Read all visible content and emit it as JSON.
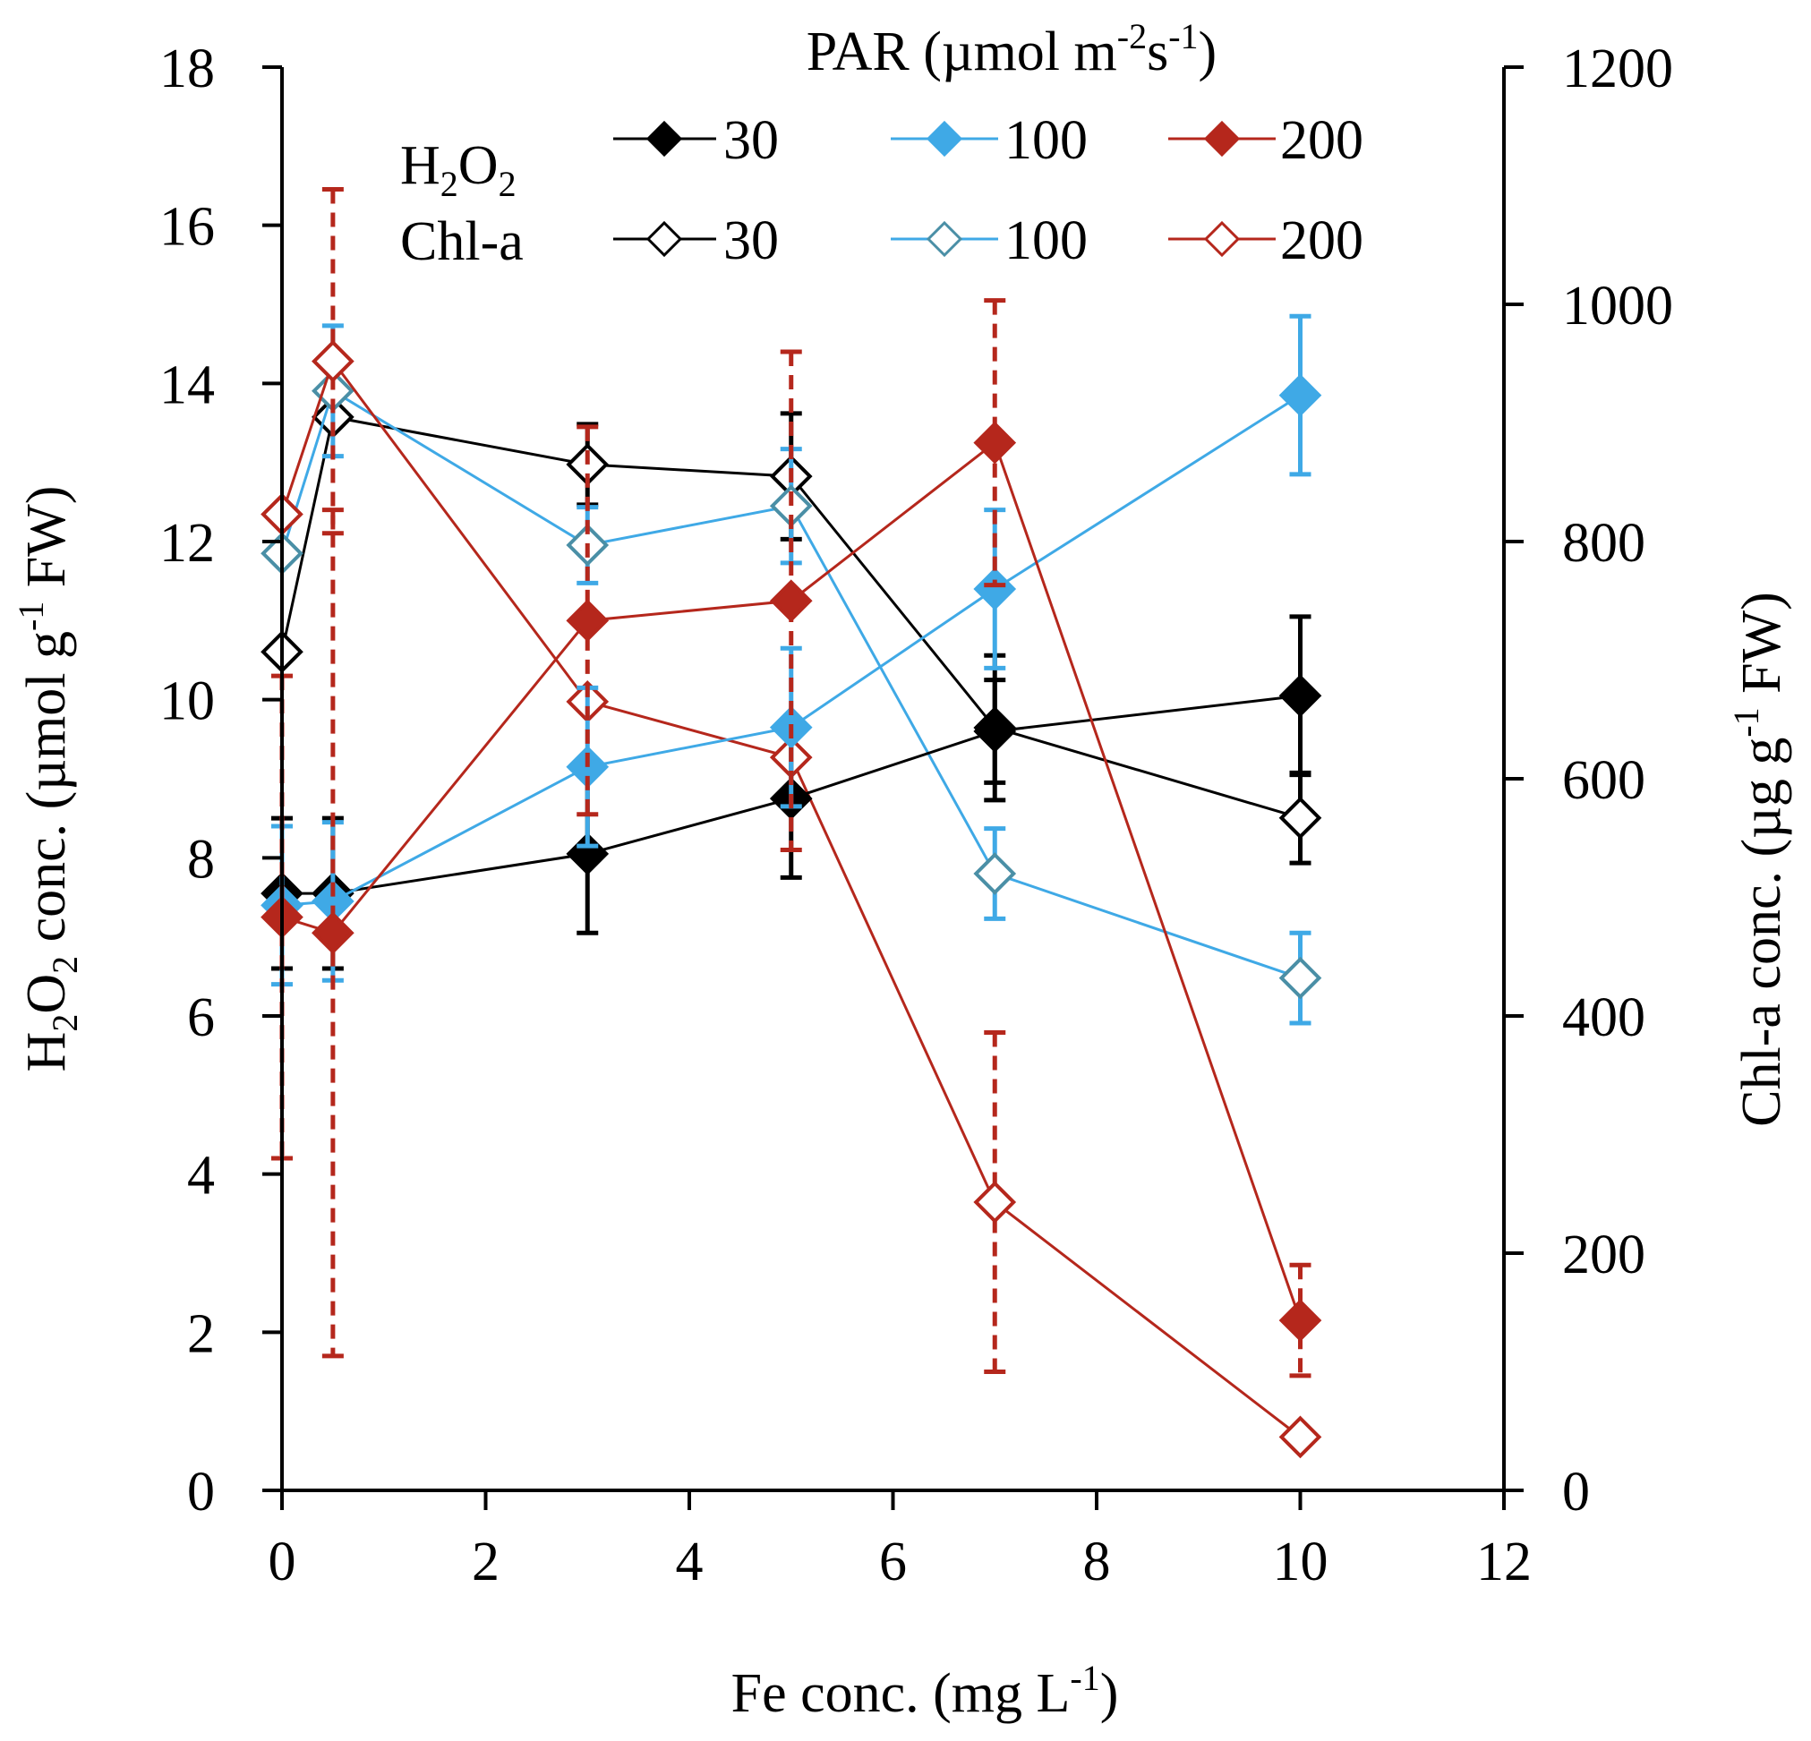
{
  "chart_data": {
    "type": "line",
    "x": [
      0,
      0.5,
      3,
      5,
      7,
      10
    ],
    "xlabel": {
      "main": "Fe conc. (mg L",
      "sup": "-1",
      "end": ")"
    },
    "ylabel_left": {
      "p1": "H",
      "sub1": "2",
      "p2": "O",
      "sub2": "2",
      "p3": " conc. (µmol g",
      "sup": "-1",
      "p4": " FW)"
    },
    "ylabel_right": {
      "p1": "Chl-a conc. (µg g",
      "sup": "-1",
      "p2": " FW)"
    },
    "xlim": [
      0,
      12
    ],
    "ylim_left": [
      0,
      18
    ],
    "ylim_right": [
      0,
      1200
    ],
    "xticks": [
      "0",
      "2",
      "4",
      "6",
      "8",
      "10",
      "12"
    ],
    "yticks_left": [
      "0",
      "2",
      "4",
      "6",
      "8",
      "10",
      "12",
      "14",
      "16",
      "18"
    ],
    "yticks_right": [
      "0",
      "200",
      "400",
      "600",
      "800",
      "1000",
      "1200"
    ],
    "grid": false,
    "legend": {
      "title": {
        "p1": "PAR (µmol m",
        "sup1": "-2",
        "p2": "s",
        "sup2": "-1",
        "p3": ")"
      },
      "row_h2o2": {
        "p1": "H",
        "sub1": "2",
        "p2": "O",
        "sub2": "2"
      },
      "row_chla": "Chl-a",
      "entries": [
        "30",
        "100",
        "200",
        "30",
        "100",
        "200"
      ]
    },
    "colors": {
      "black": "#000000",
      "blue": "#3fa9e6",
      "blue_open": "#4a8fa6",
      "red": "#b5271c"
    },
    "series": [
      {
        "name": "H2O2 30",
        "axis": "left",
        "filled": true,
        "color": "#000000",
        "dashed_error": false,
        "values": [
          7.55,
          7.55,
          8.05,
          8.75,
          9.6,
          10.05
        ],
        "errors": [
          0.95,
          0.95,
          1.0,
          1.0,
          0.65,
          1.0
        ]
      },
      {
        "name": "H2O2 100",
        "axis": "left",
        "filled": true,
        "color": "#3fa9e6",
        "dashed_error": false,
        "values": [
          7.4,
          7.45,
          9.15,
          9.65,
          11.4,
          13.85
        ],
        "errors": [
          1.0,
          1.0,
          1.0,
          1.0,
          1.0,
          1.0
        ]
      },
      {
        "name": "H2O2 200",
        "axis": "left",
        "filled": true,
        "color": "#b5271c",
        "dashed_error": true,
        "values": [
          7.25,
          7.05,
          11.0,
          11.25,
          13.25,
          2.15
        ],
        "errors": [
          3.05,
          5.35,
          2.45,
          3.15,
          1.8,
          0.7
        ]
      },
      {
        "name": "Chl-a 30",
        "axis": "right",
        "filled": false,
        "color": "#000000",
        "dashed_error": false,
        "values": [
          707,
          905,
          865,
          855,
          643,
          567
        ],
        "errors": [
          0,
          0,
          34,
          53,
          61,
          38
        ]
      },
      {
        "name": "Chl-a 100",
        "axis": "right",
        "filled": false,
        "color": "#3fa9e6",
        "dashed_error": false,
        "values": [
          790,
          927,
          797,
          830,
          520,
          432
        ],
        "errors": [
          0,
          55,
          32,
          48,
          38,
          38
        ]
      },
      {
        "name": "Chl-a 200",
        "axis": "right",
        "filled": false,
        "color": "#b5271c",
        "dashed_error": true,
        "values": [
          823,
          952,
          665,
          618,
          243,
          45
        ],
        "errors": [
          0,
          145,
          0,
          0,
          143,
          0
        ]
      }
    ]
  }
}
